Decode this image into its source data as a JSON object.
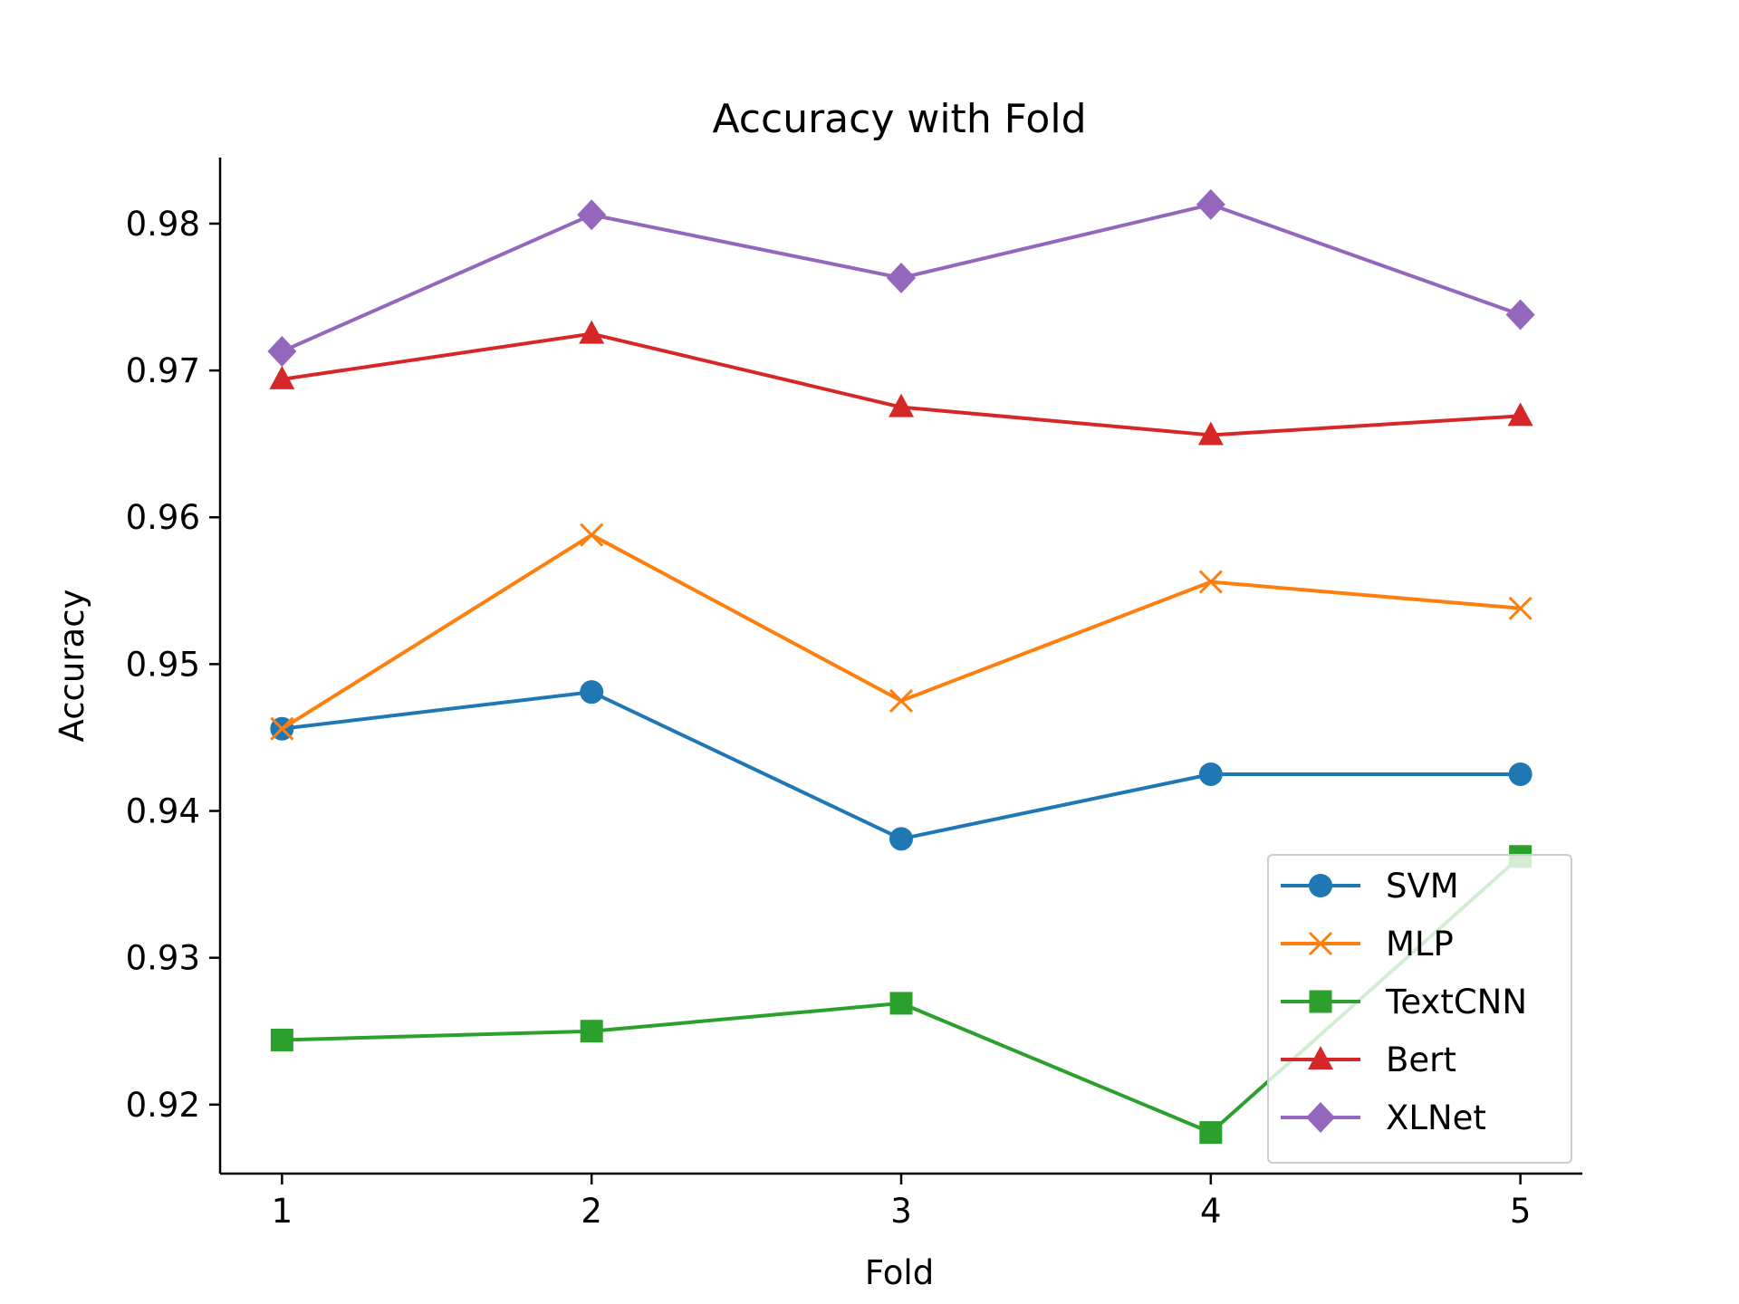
{
  "chart_data": {
    "type": "line",
    "title": "Accuracy with Fold",
    "xlabel": "Fold",
    "ylabel": "Accuracy",
    "x": [
      1,
      2,
      3,
      4,
      5
    ],
    "x_ticks": [
      "1",
      "2",
      "3",
      "4",
      "5"
    ],
    "y_ticks": [
      "0.92",
      "0.93",
      "0.94",
      "0.95",
      "0.96",
      "0.97",
      "0.98"
    ],
    "y_tick_values": [
      0.92,
      0.93,
      0.94,
      0.95,
      0.96,
      0.97,
      0.98
    ],
    "xlim": [
      0.8,
      5.2
    ],
    "ylim": [
      0.9153,
      0.9845
    ],
    "grid": false,
    "legend_position": "lower-right",
    "series": [
      {
        "name": "SVM",
        "color": "#1f77b4",
        "marker": "circle",
        "values": [
          0.9456,
          0.9481,
          0.9381,
          0.9425,
          0.9425
        ]
      },
      {
        "name": "MLP",
        "color": "#ff7f0e",
        "marker": "x",
        "values": [
          0.9456,
          0.9588,
          0.9475,
          0.9556,
          0.9538
        ]
      },
      {
        "name": "TextCNN",
        "color": "#2ca02c",
        "marker": "square",
        "values": [
          0.9244,
          0.925,
          0.9269,
          0.9181,
          0.9369
        ]
      },
      {
        "name": "Bert",
        "color": "#d62728",
        "marker": "triangle",
        "values": [
          0.9694,
          0.9725,
          0.9675,
          0.9656,
          0.9669
        ]
      },
      {
        "name": "XLNet",
        "color": "#9467bd",
        "marker": "diamond",
        "values": [
          0.9713,
          0.9806,
          0.9763,
          0.9813,
          0.9738
        ]
      }
    ]
  }
}
